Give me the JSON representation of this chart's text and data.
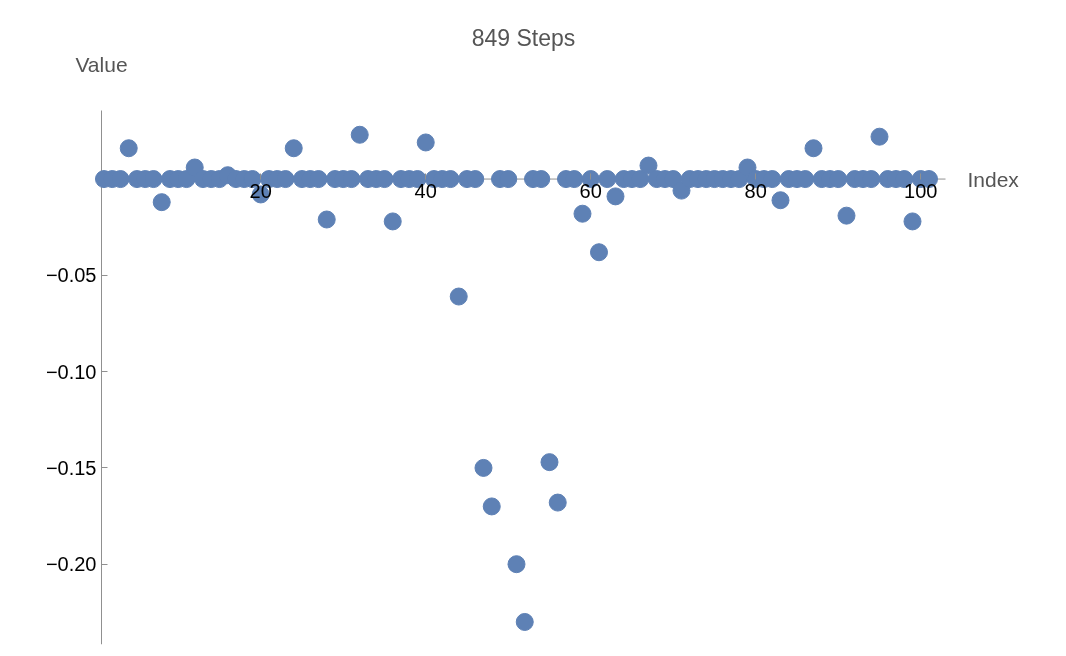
{
  "chart_data": {
    "type": "scatter",
    "title": "849 Steps",
    "xlabel": "Index",
    "ylabel": "Value",
    "x": [
      1,
      2,
      3,
      4,
      5,
      6,
      7,
      8,
      9,
      10,
      11,
      12,
      13,
      14,
      15,
      16,
      17,
      18,
      19,
      20,
      21,
      22,
      23,
      24,
      25,
      26,
      27,
      28,
      29,
      30,
      31,
      32,
      33,
      34,
      35,
      36,
      37,
      38,
      39,
      40,
      41,
      42,
      43,
      44,
      45,
      46,
      47,
      48,
      49,
      50,
      51,
      52,
      53,
      54,
      55,
      56,
      57,
      58,
      59,
      60,
      61,
      62,
      63,
      64,
      65,
      66,
      67,
      68,
      69,
      70,
      71,
      72,
      73,
      74,
      75,
      76,
      77,
      78,
      79,
      80,
      81,
      82,
      83,
      84,
      85,
      86,
      87,
      88,
      89,
      90,
      91,
      92,
      93,
      94,
      95,
      96,
      97,
      98,
      99,
      100,
      101
    ],
    "series": [
      {
        "color": "#5e81b5",
        "values": [
          0,
          0,
          0,
          0.016,
          0,
          0,
          0,
          -0.012,
          0,
          0,
          0,
          0.006,
          0,
          0,
          0,
          0.002,
          0,
          0,
          0,
          -0.008,
          0,
          0,
          0,
          0.016,
          0,
          0,
          0,
          -0.021,
          0,
          0,
          0,
          0.023,
          0,
          0,
          0,
          -0.022,
          0,
          0,
          0,
          0.019,
          0,
          0,
          0,
          -0.061,
          0,
          0,
          -0.15,
          -0.17,
          0,
          0,
          -0.2,
          -0.23,
          0,
          0,
          -0.147,
          -0.168,
          0,
          0,
          -0.018,
          0,
          -0.038,
          0,
          -0.009,
          0,
          0,
          0,
          0.007,
          0,
          0,
          0,
          -0.006,
          0,
          0,
          0,
          0,
          0,
          0,
          0,
          0.006,
          0,
          0,
          0,
          -0.011,
          0,
          0,
          0,
          0.016,
          0,
          0,
          0,
          -0.019,
          0,
          0,
          0,
          0.022,
          0,
          0,
          0,
          -0.022,
          0,
          0
        ]
      }
    ],
    "xlim": [
      0.7,
      103
    ],
    "ylim": [
      -0.2417,
      0.0356
    ],
    "xticks": [
      20,
      40,
      60,
      80,
      100
    ],
    "yticks": [
      {
        "value": -0.05,
        "label": "−0.05"
      },
      {
        "value": -0.1,
        "label": "−0.10"
      },
      {
        "value": -0.15,
        "label": "−0.15"
      },
      {
        "value": -0.2,
        "label": "−0.20"
      }
    ],
    "grid": false,
    "marker": "circle"
  }
}
